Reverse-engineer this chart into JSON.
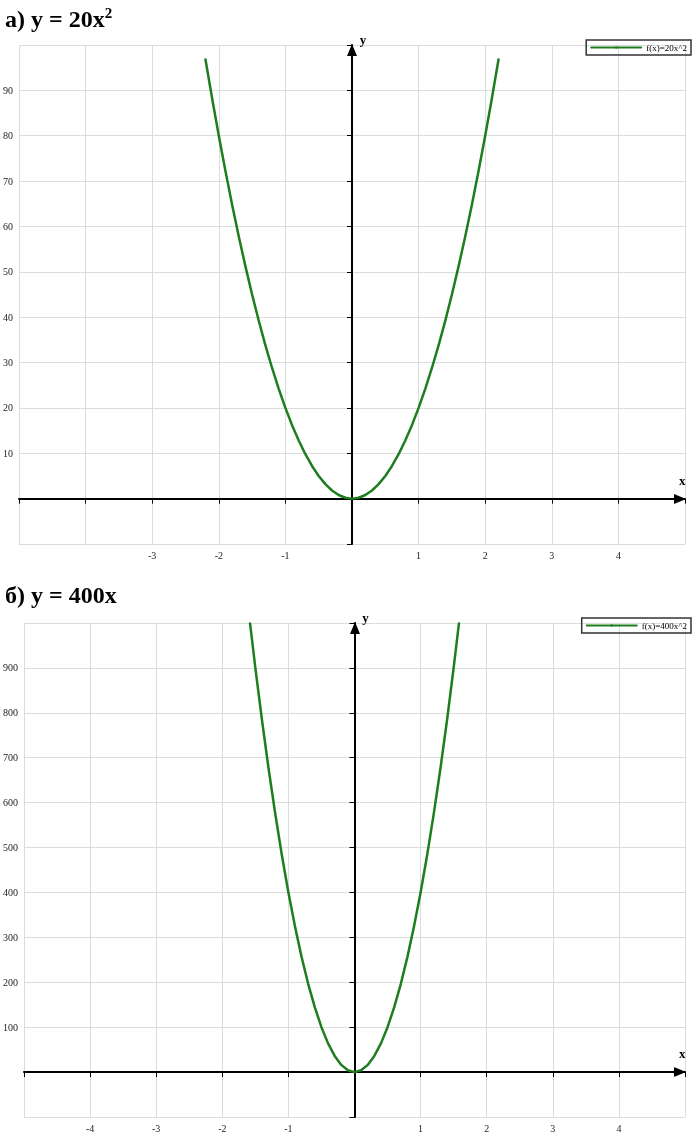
{
  "chart_data": [
    {
      "type": "line",
      "title": "а) y = 20x$^{2}$",
      "xlabel": "x",
      "ylabel": "y",
      "xlim": [
        -5,
        5
      ],
      "ylim": [
        -10,
        100
      ],
      "xticks": [
        -3,
        -2,
        -1,
        1,
        2,
        3,
        4
      ],
      "yticks": [
        10,
        20,
        30,
        40,
        50,
        60,
        70,
        80,
        90
      ],
      "grid": true,
      "legend": "top right",
      "marker": "none",
      "line_style": "solid",
      "series": [
        {
          "name": "f(x)=20x^2",
          "color": "#1e7d1e",
          "x": [
            -2.2,
            -2.1,
            -2.0,
            -1.9,
            -1.8,
            -1.7,
            -1.6,
            -1.5,
            -1.4,
            -1.3,
            -1.2,
            -1.1,
            -1.0,
            -0.9,
            -0.8,
            -0.7,
            -0.6,
            -0.5,
            -0.4,
            -0.3,
            -0.2,
            -0.1,
            0,
            0.1,
            0.2,
            0.3,
            0.4,
            0.5,
            0.6,
            0.7,
            0.8,
            0.9,
            1.0,
            1.1,
            1.2,
            1.3,
            1.4,
            1.5,
            1.6,
            1.7,
            1.8,
            1.9,
            2.0,
            2.1,
            2.2
          ],
          "values": [
            96.8,
            88.2,
            80,
            72.2,
            64.8,
            57.8,
            51.2,
            45,
            39.2,
            33.8,
            28.8,
            24.2,
            20,
            16.2,
            12.8,
            9.8,
            7.2,
            5,
            3.2,
            1.8,
            0.8,
            0.2,
            0,
            0.2,
            0.8,
            1.8,
            3.2,
            5,
            7.2,
            9.8,
            12.8,
            16.2,
            20,
            24.2,
            28.8,
            33.8,
            39.2,
            45,
            51.2,
            57.8,
            64.8,
            72.2,
            80,
            88.2,
            96.8
          ]
        }
      ]
    },
    {
      "type": "line",
      "title": "б) y = 400x",
      "xlabel": "x",
      "ylabel": "y",
      "xlim": [
        -5,
        5
      ],
      "ylim": [
        -100,
        1000
      ],
      "xticks": [
        -4,
        -3,
        -2,
        -1,
        1,
        2,
        3,
        4
      ],
      "yticks": [
        100,
        200,
        300,
        400,
        500,
        600,
        700,
        800,
        900
      ],
      "grid": true,
      "legend": "top right",
      "marker": "none",
      "line_style": "solid",
      "series": [
        {
          "name": "f(x)=400x^2",
          "color": "#1e7d1e",
          "x": [
            -1.58,
            -1.5,
            -1.4,
            -1.3,
            -1.2,
            -1.1,
            -1.0,
            -0.9,
            -0.8,
            -0.7,
            -0.6,
            -0.5,
            -0.4,
            -0.3,
            -0.2,
            -0.1,
            0,
            0.1,
            0.2,
            0.3,
            0.4,
            0.5,
            0.6,
            0.7,
            0.8,
            0.9,
            1.0,
            1.1,
            1.2,
            1.3,
            1.4,
            1.5,
            1.58
          ],
          "values": [
            999,
            900,
            784,
            676,
            576,
            484,
            400,
            324,
            256,
            196,
            144,
            100,
            64,
            36,
            16,
            4,
            0,
            4,
            16,
            36,
            64,
            100,
            144,
            196,
            256,
            324,
            400,
            484,
            576,
            676,
            784,
            900,
            999
          ]
        }
      ]
    }
  ]
}
